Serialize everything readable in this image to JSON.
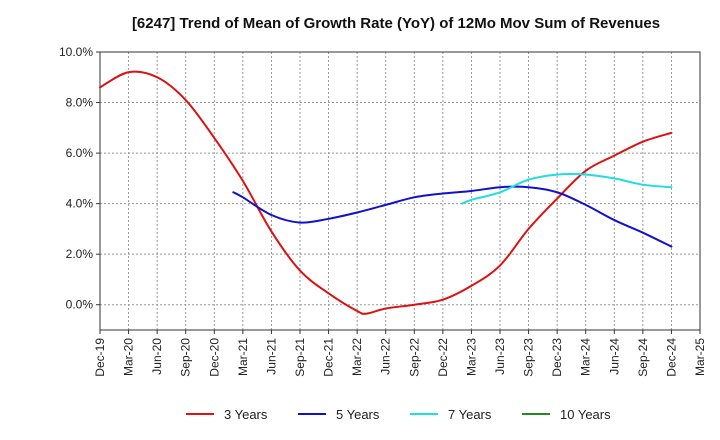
{
  "chart_data": {
    "type": "line",
    "title": "[6247]  Trend of Mean of Growth Rate (YoY) of 12Mo Mov Sum of Revenues",
    "xlabel": "",
    "ylabel": "",
    "ylim": [
      -0.01,
      0.1
    ],
    "yticks": [
      0.0,
      0.02,
      0.04,
      0.06,
      0.08,
      0.1
    ],
    "ytick_labels": [
      "0.0%",
      "2.0%",
      "4.0%",
      "6.0%",
      "8.0%",
      "10.0%"
    ],
    "xticks": [
      "Dec-19",
      "Mar-20",
      "Jun-20",
      "Sep-20",
      "Dec-20",
      "Mar-21",
      "Jun-21",
      "Sep-21",
      "Dec-21",
      "Mar-22",
      "Jun-22",
      "Sep-22",
      "Dec-22",
      "Mar-23",
      "Jun-23",
      "Sep-23",
      "Dec-23",
      "Mar-24",
      "Jun-24",
      "Sep-24",
      "Dec-24",
      "Mar-25"
    ],
    "grid": true,
    "legend_position": "bottom",
    "series": [
      {
        "name": "3 Years",
        "color": "#dd1111",
        "x": [
          "Dec-19",
          "Mar-20",
          "Jun-20",
          "Sep-20",
          "Dec-20",
          "Mar-21",
          "Jun-21",
          "Sep-21",
          "Dec-21",
          "Mar-22",
          "Apr-22",
          "Jun-22",
          "Sep-22",
          "Dec-22",
          "Mar-23",
          "Jun-23",
          "Sep-23",
          "Dec-23",
          "Mar-24",
          "Jun-24",
          "Sep-24",
          "Dec-24"
        ],
        "values": [
          0.086,
          0.092,
          0.09,
          0.081,
          0.066,
          0.049,
          0.029,
          0.0135,
          0.0045,
          -0.0025,
          -0.0035,
          -0.0015,
          0.0,
          0.002,
          0.0075,
          0.0155,
          0.03,
          0.042,
          0.053,
          0.059,
          0.0645,
          0.068
        ]
      },
      {
        "name": "5 Years",
        "color": "#1111cc",
        "x": [
          "Feb-21",
          "Mar-21",
          "Jun-21",
          "Sep-21",
          "Dec-21",
          "Mar-22",
          "Jun-22",
          "Sep-22",
          "Dec-22",
          "Mar-23",
          "Jun-23",
          "Sep-23",
          "Dec-23",
          "Mar-24",
          "Jun-24",
          "Sep-24",
          "Dec-24"
        ],
        "values": [
          0.0445,
          0.0425,
          0.0355,
          0.0325,
          0.034,
          0.0365,
          0.0395,
          0.0425,
          0.044,
          0.045,
          0.0465,
          0.0465,
          0.0445,
          0.0395,
          0.0335,
          0.0285,
          0.023
        ]
      },
      {
        "name": "7 Years",
        "color": "#22dddd",
        "x": [
          "Feb-23",
          "Mar-23",
          "Jun-23",
          "Sep-23",
          "Dec-23",
          "Mar-24",
          "Jun-24",
          "Sep-24",
          "Dec-24"
        ],
        "values": [
          0.04,
          0.0415,
          0.0445,
          0.0495,
          0.0515,
          0.0515,
          0.05,
          0.0475,
          0.0465
        ]
      },
      {
        "name": "10 Years",
        "color": "#228822",
        "x": [],
        "values": []
      }
    ]
  }
}
